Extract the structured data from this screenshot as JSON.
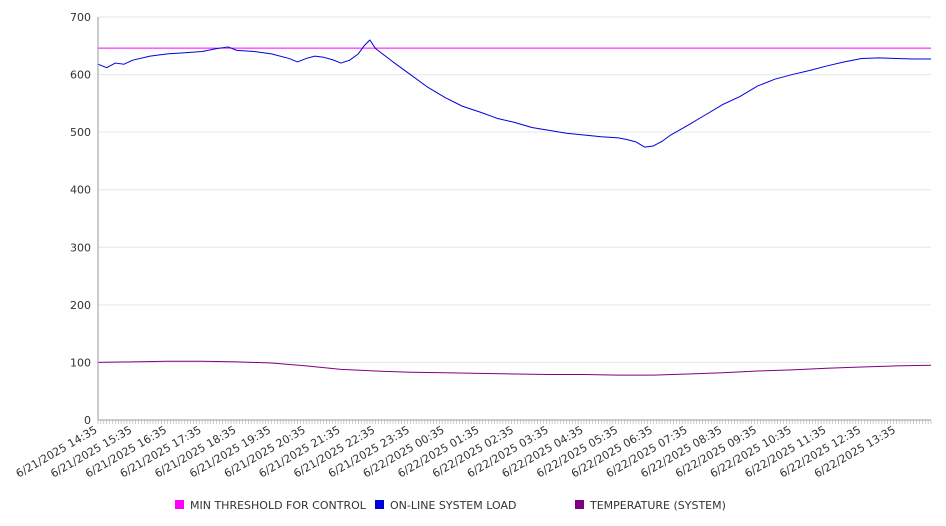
{
  "chart_data": {
    "type": "line",
    "title": "",
    "xlabel": "",
    "ylabel": "",
    "ylim": [
      0,
      700
    ],
    "y_ticks": [
      0,
      100,
      200,
      300,
      400,
      500,
      600,
      700
    ],
    "x_tick_labels": [
      "6/21/2025 14:35",
      "6/21/2025 15:35",
      "6/21/2025 16:35",
      "6/21/2025 17:35",
      "6/21/2025 18:35",
      "6/21/2025 19:35",
      "6/21/2025 20:35",
      "6/21/2025 21:35",
      "6/21/2025 22:35",
      "6/21/2025 23:35",
      "6/22/2025 00:35",
      "6/22/2025 01:35",
      "6/22/2025 02:35",
      "6/22/2025 03:35",
      "6/22/2025 04:35",
      "6/22/2025 05:35",
      "6/22/2025 06:35",
      "6/22/2025 07:35",
      "6/22/2025 08:35",
      "6/22/2025 09:35",
      "6/22/2025 10:35",
      "6/22/2025 11:35",
      "6/22/2025 12:35",
      "6/22/2025 13:35"
    ],
    "x_range": [
      "6/21/2025 14:35",
      "6/22/2025 14:35"
    ],
    "grid": true,
    "legend_position": "bottom",
    "series": [
      {
        "name": "MIN THRESHOLD FOR CONTROL",
        "color": "#ff00ff",
        "x": [
          "6/21/2025 14:35",
          "6/22/2025 14:35"
        ],
        "values": [
          646,
          646
        ]
      },
      {
        "name": "ON-LINE SYSTEM LOAD",
        "color": "#0000dd",
        "x": [
          "6/21/2025 14:35",
          "6/21/2025 14:50",
          "6/21/2025 15:05",
          "6/21/2025 15:20",
          "6/21/2025 15:35",
          "6/21/2025 16:05",
          "6/21/2025 16:35",
          "6/21/2025 17:05",
          "6/21/2025 17:35",
          "6/21/2025 18:00",
          "6/21/2025 18:20",
          "6/21/2025 18:35",
          "6/21/2025 19:05",
          "6/21/2025 19:35",
          "6/21/2025 20:05",
          "6/21/2025 20:20",
          "6/21/2025 20:35",
          "6/21/2025 20:50",
          "6/21/2025 21:05",
          "6/21/2025 21:20",
          "6/21/2025 21:35",
          "6/21/2025 21:50",
          "6/21/2025 22:05",
          "6/21/2025 22:15",
          "6/21/2025 22:25",
          "6/21/2025 22:35",
          "6/21/2025 23:05",
          "6/21/2025 23:35",
          "6/22/2025 00:05",
          "6/22/2025 00:35",
          "6/22/2025 01:05",
          "6/22/2025 01:35",
          "6/22/2025 02:05",
          "6/22/2025 02:35",
          "6/22/2025 03:05",
          "6/22/2025 03:35",
          "6/22/2025 04:05",
          "6/22/2025 04:35",
          "6/22/2025 05:05",
          "6/22/2025 05:35",
          "6/22/2025 05:50",
          "6/22/2025 06:05",
          "6/22/2025 06:20",
          "6/22/2025 06:35",
          "6/22/2025 06:50",
          "6/22/2025 07:05",
          "6/22/2025 07:35",
          "6/22/2025 08:05",
          "6/22/2025 08:35",
          "6/22/2025 09:05",
          "6/22/2025 09:35",
          "6/22/2025 10:05",
          "6/22/2025 10:35",
          "6/22/2025 11:05",
          "6/22/2025 11:35",
          "6/22/2025 12:05",
          "6/22/2025 12:35",
          "6/22/2025 13:05",
          "6/22/2025 13:35",
          "6/22/2025 14:05",
          "6/22/2025 14:35"
        ],
        "values": [
          618,
          612,
          620,
          618,
          625,
          632,
          636,
          638,
          640,
          645,
          648,
          642,
          640,
          636,
          628,
          622,
          628,
          632,
          630,
          626,
          620,
          625,
          636,
          650,
          660,
          645,
          622,
          600,
          578,
          560,
          545,
          535,
          524,
          517,
          508,
          503,
          498,
          495,
          492,
          490,
          487,
          483,
          474,
          476,
          484,
          495,
          512,
          530,
          548,
          562,
          580,
          592,
          600,
          607,
          615,
          622,
          628,
          629,
          628,
          627,
          627
        ]
      },
      {
        "name": "TEMPERATURE (SYSTEM)",
        "color": "#800080",
        "x": [
          "6/21/2025 14:35",
          "6/21/2025 15:35",
          "6/21/2025 16:35",
          "6/21/2025 17:35",
          "6/21/2025 18:35",
          "6/21/2025 19:35",
          "6/21/2025 20:35",
          "6/21/2025 21:35",
          "6/21/2025 22:35",
          "6/21/2025 23:35",
          "6/22/2025 00:35",
          "6/22/2025 01:35",
          "6/22/2025 02:35",
          "6/22/2025 03:35",
          "6/22/2025 04:35",
          "6/22/2025 05:35",
          "6/22/2025 06:35",
          "6/22/2025 07:35",
          "6/22/2025 08:35",
          "6/22/2025 09:35",
          "6/22/2025 10:35",
          "6/22/2025 11:35",
          "6/22/2025 12:35",
          "6/22/2025 13:35",
          "6/22/2025 14:35"
        ],
        "values": [
          100,
          101,
          102,
          102,
          101,
          99,
          94,
          88,
          85,
          83,
          82,
          81,
          80,
          79,
          79,
          78,
          78,
          80,
          82,
          85,
          87,
          90,
          92,
          94,
          95
        ]
      }
    ]
  }
}
